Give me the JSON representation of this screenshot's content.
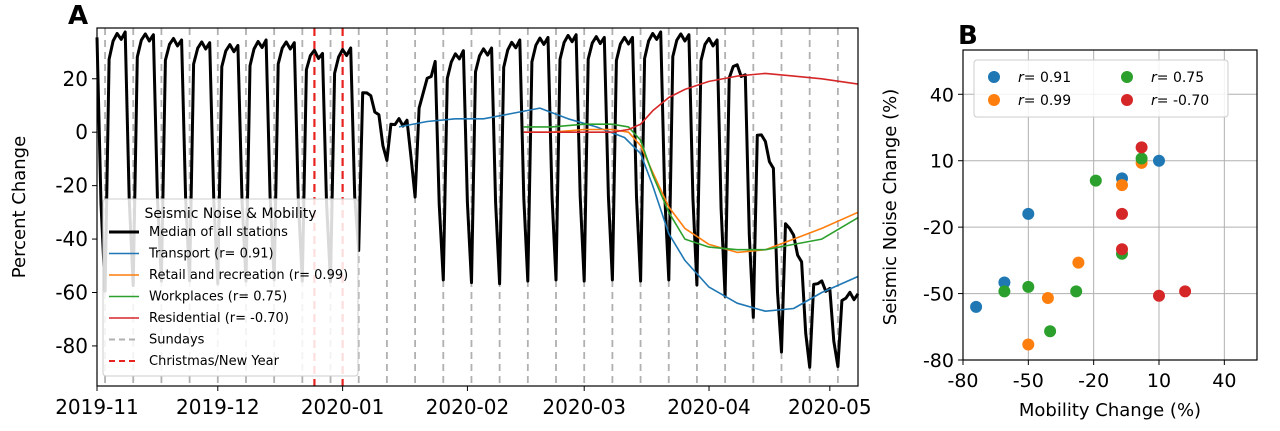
{
  "chart_data": [
    {
      "panel": "A",
      "type": "line",
      "ylabel": "Percent Change",
      "xlabel": "",
      "ylim": [
        -95,
        39
      ],
      "xlim": [
        "2019-11-01",
        "2020-05-08"
      ],
      "x_ticks": [
        "2019-11",
        "2019-12",
        "2020-01",
        "2020-02",
        "2020-03",
        "2020-04",
        "2020-05"
      ],
      "y_ticks": [
        20,
        0,
        -20,
        -40,
        -60,
        -80
      ],
      "legend": {
        "title": "Seismic Noise & Mobility",
        "placement": "center-left",
        "entries": [
          "Median of all stations",
          "Transport (r= 0.91)",
          "Retail and recreation (r= 0.99)",
          "Workplaces (r= 0.75)",
          "Residential (r= -0.70)",
          "Sundays",
          "Christmas/New Year"
        ]
      },
      "vlines": {
        "sundays": [
          "2019-11-03",
          "2019-11-10",
          "2019-11-17",
          "2019-11-24",
          "2019-12-01",
          "2019-12-08",
          "2019-12-15",
          "2019-12-22",
          "2019-12-29",
          "2020-01-05",
          "2020-01-12",
          "2020-01-19",
          "2020-01-26",
          "2020-02-02",
          "2020-02-09",
          "2020-02-16",
          "2020-02-23",
          "2020-03-01",
          "2020-03-08",
          "2020-03-15",
          "2020-03-22",
          "2020-03-29",
          "2020-04-05",
          "2020-04-12",
          "2020-04-19",
          "2020-04-26",
          "2020-05-03"
        ],
        "holidays": [
          "2019-12-25",
          "2020-01-01"
        ]
      },
      "series": [
        {
          "name": "Median of all stations",
          "color": "#000000",
          "weekday_level": [
            34,
            36,
            35,
            33,
            32,
            31,
            33,
            32,
            28,
            30,
            5,
            3,
            25,
            29,
            30,
            33,
            34,
            35,
            34,
            34,
            36,
            35,
            33,
            20,
            -15,
            -50,
            -60,
            -62,
            -60,
            -62,
            -58,
            -55,
            -50,
            -45,
            -35,
            -30
          ],
          "sunday_level": [
            -60,
            -58,
            -56,
            -55,
            -57,
            -56,
            -55,
            -56,
            -55,
            -58,
            -10,
            -12,
            -55,
            -56,
            -57,
            -56,
            -55,
            -56,
            -55,
            -56,
            -55,
            -56,
            -60,
            -65,
            -80,
            -88,
            -88,
            -87,
            -85,
            -84,
            -83,
            -82,
            -80,
            -78,
            -65,
            -60
          ],
          "start": "2019-11-01",
          "end": "2020-05-08"
        },
        {
          "name": "Transport (r= 0.91)",
          "color": "#1f77b4",
          "x": [
            "2020-01-15",
            "2020-01-22",
            "2020-01-29",
            "2020-02-05",
            "2020-02-12",
            "2020-02-19",
            "2020-02-26",
            "2020-03-04",
            "2020-03-11",
            "2020-03-15",
            "2020-03-18",
            "2020-03-22",
            "2020-03-26",
            "2020-04-01",
            "2020-04-08",
            "2020-04-15",
            "2020-04-22",
            "2020-04-29",
            "2020-05-08"
          ],
          "y": [
            2,
            4,
            5,
            5,
            7,
            9,
            5,
            2,
            -2,
            -8,
            -20,
            -38,
            -48,
            -58,
            -64,
            -67,
            -66,
            -60,
            -54
          ]
        },
        {
          "name": "Retail and recreation (r= 0.99)",
          "color": "#ff7f0e",
          "x": [
            "2020-02-15",
            "2020-02-22",
            "2020-03-01",
            "2020-03-08",
            "2020-03-12",
            "2020-03-15",
            "2020-03-18",
            "2020-03-22",
            "2020-03-26",
            "2020-04-01",
            "2020-04-08",
            "2020-04-15",
            "2020-04-22",
            "2020-04-29",
            "2020-05-08"
          ],
          "y": [
            0,
            0,
            1,
            1,
            0,
            -5,
            -15,
            -28,
            -36,
            -42,
            -45,
            -44,
            -40,
            -36,
            -30
          ]
        },
        {
          "name": "Workplaces (r= 0.75)",
          "color": "#2ca02c",
          "x": [
            "2020-02-15",
            "2020-02-22",
            "2020-03-01",
            "2020-03-08",
            "2020-03-12",
            "2020-03-15",
            "2020-03-18",
            "2020-03-22",
            "2020-03-26",
            "2020-04-01",
            "2020-04-08",
            "2020-04-15",
            "2020-04-22",
            "2020-04-29",
            "2020-05-08"
          ],
          "y": [
            2,
            2,
            3,
            3,
            2,
            -3,
            -16,
            -30,
            -40,
            -43,
            -44,
            -44,
            -42,
            -40,
            -32
          ]
        },
        {
          "name": "Residential (r= -0.70)",
          "color": "#d62728",
          "x": [
            "2020-02-15",
            "2020-02-22",
            "2020-03-01",
            "2020-03-08",
            "2020-03-12",
            "2020-03-15",
            "2020-03-18",
            "2020-03-22",
            "2020-03-26",
            "2020-04-01",
            "2020-04-08",
            "2020-04-15",
            "2020-04-22",
            "2020-04-29",
            "2020-05-08"
          ],
          "y": [
            0,
            0,
            0,
            0,
            1,
            3,
            8,
            13,
            16,
            19,
            21,
            22,
            21,
            20,
            18
          ]
        }
      ]
    },
    {
      "panel": "B",
      "type": "scatter",
      "xlabel": "Mobility Change (%)",
      "ylabel": "Seismic Noise Change (%)",
      "xlim": [
        -80,
        55
      ],
      "ylim": [
        -80,
        60
      ],
      "x_ticks": [
        -80,
        -50,
        -20,
        10,
        40
      ],
      "y_ticks": [
        40,
        10,
        -20,
        -50,
        -80
      ],
      "legend": {
        "placement": "top",
        "entries": [
          {
            "label": "r= 0.91",
            "color": "#1f77b4"
          },
          {
            "label": "r= 0.75",
            "color": "#2ca02c"
          },
          {
            "label": "r= 0.99",
            "color": "#ff7f0e"
          },
          {
            "label": "r= -0.70",
            "color": "#d62728"
          }
        ]
      },
      "series": [
        {
          "name": "r= 0.91",
          "color": "#1f77b4",
          "x": [
            -74,
            -61,
            -50,
            -7,
            10
          ],
          "y": [
            -56,
            -45,
            -14,
            2,
            10
          ]
        },
        {
          "name": "r= 0.99",
          "color": "#ff7f0e",
          "x": [
            -50,
            -41,
            -27,
            -7,
            2
          ],
          "y": [
            -73,
            -52,
            -36,
            -1,
            9
          ]
        },
        {
          "name": "r= 0.75",
          "color": "#2ca02c",
          "x": [
            -61,
            -50,
            -40,
            -28,
            -19,
            -7,
            2
          ],
          "y": [
            -49,
            -47,
            -67,
            -49,
            1,
            -32,
            11
          ]
        },
        {
          "name": "r= -0.70",
          "color": "#d62728",
          "x": [
            -7,
            -7,
            2,
            10,
            22
          ],
          "y": [
            -14,
            -30,
            16,
            -51,
            -49
          ]
        }
      ]
    }
  ]
}
